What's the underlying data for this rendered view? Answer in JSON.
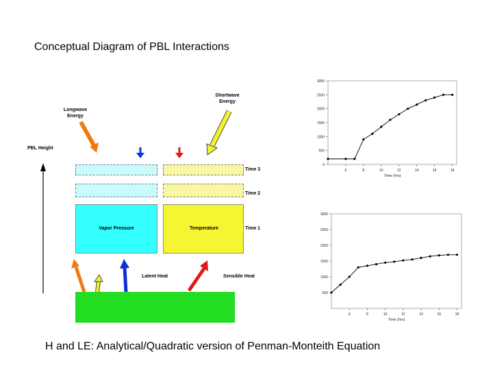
{
  "title": "Conceptual Diagram of PBL Interactions",
  "caption": "H and LE: Analytical/Quadratic version of Penman-Monteith Equation",
  "diagram": {
    "pbl_height_label": "PBL Height",
    "longwave_label": "Longwave\nEnergy",
    "shortwave_label": "Shortwave\nEnergy",
    "vapor_pressure_label": "Vapor Pressure",
    "temperature_label": "Temperature",
    "time1_label": "Time 1",
    "time2_label": "Time 2",
    "time3_label": "Time 3",
    "latent_heat_label": "Latent  Heat",
    "sensible_heat_label": "Sensible Heat",
    "colors": {
      "cyan": "#33ffff",
      "yellow": "#f5f532",
      "ground": "#22dd22",
      "orange_arrow": "#f07a10",
      "yellow_arrow": "#f2f230",
      "blue_arrow": "#1030d0",
      "red_arrow": "#e01818"
    }
  },
  "chart_data": [
    {
      "type": "line",
      "x": [
        4,
        6,
        7,
        8,
        9,
        10,
        11,
        12,
        13,
        14,
        15,
        16,
        17,
        18
      ],
      "y": [
        200,
        200,
        200,
        900,
        1100,
        1350,
        1600,
        1800,
        2000,
        2150,
        2300,
        2400,
        2500,
        2500
      ],
      "xticks": [
        "6",
        "8",
        "10",
        "12",
        "14",
        "16",
        "18"
      ],
      "yticks": [
        "0",
        "500",
        "1000",
        "1500",
        "2000",
        "2500",
        "3000"
      ],
      "xlabel": "Time (hrs)",
      "ylabel": "",
      "xlim": [
        4,
        18.5
      ],
      "ylim": [
        0,
        3000
      ],
      "grid": false,
      "color": "#000000"
    },
    {
      "type": "line",
      "x": [
        4,
        5,
        6,
        7,
        8,
        9,
        10,
        11,
        12,
        13,
        14,
        15,
        16,
        17,
        18
      ],
      "y": [
        500,
        750,
        1000,
        1300,
        1350,
        1400,
        1450,
        1480,
        1520,
        1550,
        1600,
        1650,
        1680,
        1700,
        1700
      ],
      "xticks": [
        "6",
        "8",
        "10",
        "12",
        "14",
        "16",
        "18"
      ],
      "yticks": [
        "500",
        "1000",
        "1500",
        "2000",
        "2500",
        "3000"
      ],
      "xlabel": "Time (hrs)",
      "ylabel": "",
      "xlim": [
        4,
        18.5
      ],
      "ylim": [
        0,
        3000
      ],
      "grid": false,
      "color": "#000000"
    }
  ]
}
